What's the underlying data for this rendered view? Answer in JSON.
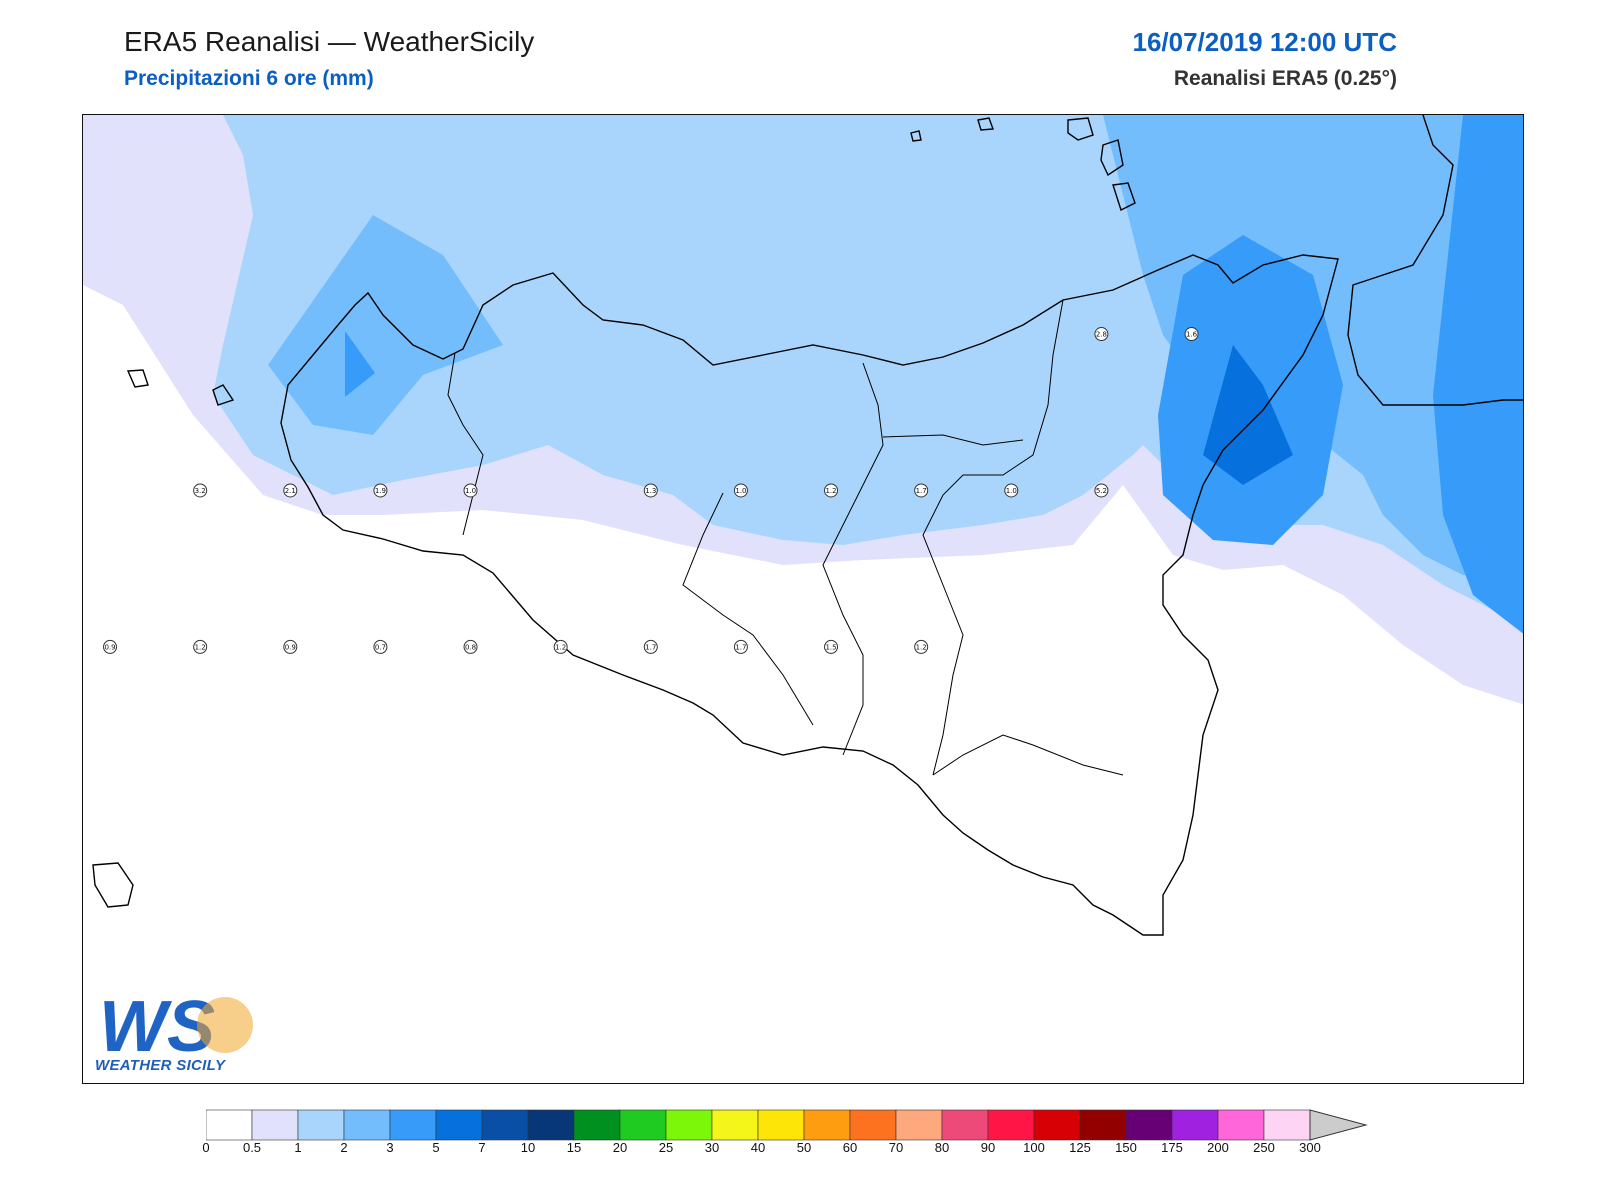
{
  "header": {
    "title": "ERA5 Reanalisi — WeatherSicily",
    "subtitle": "Precipitazioni 6 ore (mm)",
    "datetime": "16/07/2019 12:00 UTC",
    "source": "Reanalisi ERA5 (0.25°)"
  },
  "logo": {
    "text": "WS",
    "caption": "WEATHER SICILY"
  },
  "colors": {
    "level_0_05": "#e1e1fb",
    "level_1_2": "#a9d5fc",
    "level_2_3": "#74bdfc",
    "level_3_5": "#379bf9",
    "level_5_7": "#0671dd",
    "coastline": "#000000"
  },
  "colorbar": {
    "levels": [
      "0",
      "0.5",
      "1",
      "2",
      "3",
      "5",
      "7",
      "10",
      "15",
      "20",
      "25",
      "30",
      "40",
      "50",
      "60",
      "70",
      "80",
      "90",
      "100",
      "125",
      "150",
      "175",
      "200",
      "250",
      "300"
    ],
    "colors": [
      "#ffffff",
      "#e1e1fb",
      "#a9d5fc",
      "#74bdfc",
      "#379bf9",
      "#0671dd",
      "#0a4fa6",
      "#073776",
      "#00901f",
      "#1fcb21",
      "#7cf70a",
      "#f4f519",
      "#fde507",
      "#fe9d0f",
      "#fd721e",
      "#fea97d",
      "#ee4a79",
      "#ff1546",
      "#d70105",
      "#920100",
      "#670074",
      "#a121e0",
      "#fe66da",
      "#fed4f5"
    ],
    "extend_color": "#cccccc"
  },
  "stations": [
    {
      "name": "3.2",
      "lon": 12.55,
      "lat": 38.2
    },
    {
      "name": "2.1",
      "lon": 13.05,
      "lat": 38.2
    },
    {
      "name": "1.9",
      "lon": 13.55,
      "lat": 38.2
    },
    {
      "name": "1.0",
      "lon": 14.05,
      "lat": 38.2
    },
    {
      "name": "1.3",
      "lon": 15.05,
      "lat": 38.2
    },
    {
      "name": "1.0",
      "lon": 15.55,
      "lat": 38.2
    },
    {
      "name": "1.2",
      "lon": 16.05,
      "lat": 38.2
    },
    {
      "name": "1.7",
      "lon": 16.55,
      "lat": 38.2
    },
    {
      "name": "1.0",
      "lon": 17.05,
      "lat": 38.2
    },
    {
      "name": "5.2",
      "lon": 17.55,
      "lat": 38.2
    },
    {
      "name": "2.8",
      "lon": 17.55,
      "lat": 38.7
    },
    {
      "name": "1.6",
      "lon": 18.05,
      "lat": 38.7
    },
    {
      "name": "0.9",
      "lon": 12.05,
      "lat": 37.7
    },
    {
      "name": "1.2",
      "lon": 12.55,
      "lat": 37.7
    },
    {
      "name": "0.9",
      "lon": 13.05,
      "lat": 37.7
    },
    {
      "name": "0.7",
      "lon": 13.55,
      "lat": 37.7
    },
    {
      "name": "0.8",
      "lon": 14.05,
      "lat": 37.7
    },
    {
      "name": "1.2",
      "lon": 14.55,
      "lat": 37.7
    },
    {
      "name": "1.7",
      "lon": 15.05,
      "lat": 37.7
    },
    {
      "name": "1.7",
      "lon": 15.55,
      "lat": 37.7
    },
    {
      "name": "1.5",
      "lon": 16.05,
      "lat": 37.7
    },
    {
      "name": "1.2",
      "lon": 16.55,
      "lat": 37.7
    }
  ]
}
